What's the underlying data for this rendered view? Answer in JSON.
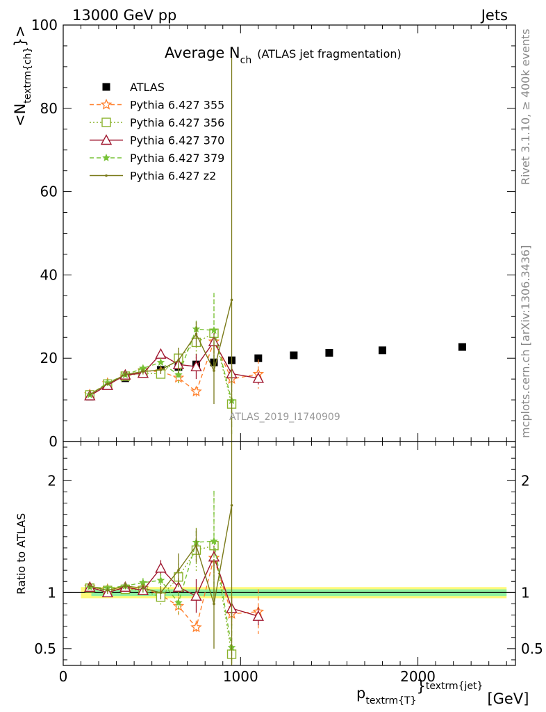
{
  "header": {
    "energy_label": "13000 GeV pp",
    "process_label": "Jets"
  },
  "side_labels": {
    "rivet": "Rivet 3.1.10, ≥ 400k events",
    "mcplots": "mcplots.cern.ch [arXiv:1306.3436]"
  },
  "colors": {
    "ATLAS": "#000000",
    "Pythia 6.427 355": "#ff7f2a",
    "Pythia 6.427 356": "#8ab22a",
    "Pythia 6.427 370": "#a01830",
    "Pythia 6.427 379": "#77c236",
    "Pythia 6.427 z2": "#7a7a1a",
    "band_yellow": "#fff97a",
    "band_green": "#8ef0a0"
  },
  "chart_data": [
    {
      "type": "line",
      "title_main": "Average N",
      "title_sub": "ch",
      "title_note": "(ATLAS jet fragmentation)",
      "ylabel": "<N",
      "ylabel_sub": "textrm{ch}",
      "ylabel_end": "}>",
      "analysis_tag": "ATLAS_2019_I1740909",
      "xlim": [
        0,
        2550
      ],
      "ylim": [
        0,
        100
      ],
      "yticks": [
        0,
        20,
        40,
        60,
        80,
        100
      ],
      "xticks": [
        0,
        1000,
        2000
      ],
      "grid": false,
      "legend_position": "top-left",
      "x": [
        150,
        250,
        350,
        450,
        550,
        650,
        750,
        850,
        950,
        1100,
        1300,
        1500,
        1800,
        2250
      ],
      "series": [
        {
          "name": "ATLAS",
          "marker": "filled-square",
          "style": "none",
          "x": [
            150,
            250,
            350,
            450,
            550,
            650,
            750,
            850,
            950,
            1100,
            1300,
            1500,
            1800,
            2250
          ],
          "values": [
            10.8,
            13.6,
            15.2,
            16.3,
            17.2,
            17.9,
            18.5,
            19.0,
            19.5,
            20.0,
            20.7,
            21.3,
            21.9,
            22.7
          ],
          "err": [
            0.3,
            0.3,
            0.3,
            0.3,
            0.3,
            0.4,
            0.4,
            0.4,
            0.4,
            0.5,
            0.5,
            0.5,
            0.6,
            0.7
          ]
        },
        {
          "name": "Pythia 6.427 355",
          "marker": "open-star",
          "style": "dashed",
          "x": [
            150,
            250,
            350,
            450,
            550,
            650,
            750,
            850,
            950,
            1100
          ],
          "values": [
            11.3,
            14.0,
            15.6,
            17.0,
            16.8,
            15.3,
            12.0,
            24.0,
            15.0,
            16.2
          ],
          "err": [
            0.3,
            0.4,
            0.5,
            0.7,
            1.0,
            1.5,
            1.2,
            3.0,
            2.5,
            3.5
          ]
        },
        {
          "name": "Pythia 6.427 356",
          "marker": "open-square",
          "style": "dotted",
          "x": [
            150,
            250,
            350,
            450,
            550,
            650,
            750,
            850,
            950
          ],
          "values": [
            11.2,
            13.8,
            15.7,
            16.5,
            16.2,
            20.0,
            23.8,
            26.0,
            9.0
          ],
          "err": [
            0.3,
            0.4,
            0.5,
            0.7,
            1.2,
            2.5,
            4.0,
            9.0,
            5.0
          ]
        },
        {
          "name": "Pythia 6.427 370",
          "marker": "open-triangle",
          "style": "solid",
          "x": [
            150,
            250,
            350,
            450,
            550,
            650,
            750,
            850,
            950,
            1100
          ],
          "values": [
            11.0,
            13.5,
            16.0,
            16.4,
            21.0,
            18.5,
            18.0,
            24.0,
            16.3,
            15.2
          ],
          "err": [
            0.3,
            0.4,
            0.5,
            0.7,
            1.2,
            1.5,
            3.0,
            2.0,
            2.0,
            1.5
          ]
        },
        {
          "name": "Pythia 6.427 379",
          "marker": "filled-star",
          "style": "dashed",
          "x": [
            150,
            250,
            350,
            450,
            550,
            650,
            750,
            850,
            950
          ],
          "values": [
            11.2,
            14.1,
            16.0,
            17.6,
            19.0,
            16.0,
            27.0,
            26.7,
            9.8
          ],
          "err": [
            0.3,
            0.4,
            0.5,
            0.7,
            1.0,
            2.0,
            2.0,
            9.0,
            8.0
          ]
        },
        {
          "name": "Pythia 6.427 z2",
          "marker": "dot",
          "style": "solid",
          "x": [
            150,
            250,
            350,
            450,
            550,
            650,
            750,
            850,
            950
          ],
          "values": [
            11.3,
            13.8,
            16.1,
            16.8,
            17.2,
            19.5,
            25.8,
            17.0,
            34.0
          ],
          "err": [
            0.3,
            0.4,
            0.5,
            0.7,
            1.0,
            3.0,
            3.0,
            8.0,
            60.0
          ]
        }
      ]
    },
    {
      "type": "line",
      "ylabel": "Ratio to ATLAS",
      "xlabel_main": "p",
      "xlabel_sub": "textrm{T}",
      "xlabel_sup": "textrm{jet}",
      "xlabel_brace": "}",
      "xlabel_unit": "[GeV]",
      "xlim": [
        0,
        2550
      ],
      "ylim": [
        0.35,
        2.35
      ],
      "yticks": [
        0.5,
        1,
        2
      ],
      "ytick_labels": [
        "0.5",
        "1",
        "2"
      ],
      "xticks": [
        0,
        1000,
        2000
      ],
      "xtick_labels": [
        "0",
        "1000",
        "2000"
      ],
      "reference_band": {
        "x": [
          100,
          2500
        ],
        "yellow": [
          0.95,
          1.05
        ],
        "green": [
          0.97,
          1.03
        ]
      },
      "series": [
        {
          "name": "Pythia 6.427 355",
          "x": [
            150,
            250,
            350,
            450,
            550,
            650,
            750,
            850,
            950,
            1100
          ],
          "values": [
            1.05,
            1.03,
            1.03,
            1.04,
            0.98,
            0.88,
            0.69,
            1.31,
            0.81,
            0.83
          ],
          "err": [
            0.03,
            0.03,
            0.03,
            0.04,
            0.06,
            0.08,
            0.06,
            0.15,
            0.12,
            0.2
          ]
        },
        {
          "name": "Pythia 6.427 356",
          "x": [
            150,
            250,
            350,
            450,
            550,
            650,
            750,
            850,
            950
          ],
          "values": [
            1.04,
            1.02,
            1.03,
            1.02,
            0.96,
            1.14,
            1.38,
            1.42,
            0.45
          ],
          "err": [
            0.03,
            0.03,
            0.03,
            0.04,
            0.07,
            0.12,
            0.2,
            0.45,
            0.3
          ]
        },
        {
          "name": "Pythia 6.427 370",
          "x": [
            150,
            250,
            350,
            450,
            550,
            650,
            750,
            850,
            950,
            1100
          ],
          "values": [
            1.05,
            1.0,
            1.05,
            1.02,
            1.22,
            1.05,
            0.97,
            1.32,
            0.86,
            0.79
          ],
          "err": [
            0.03,
            0.03,
            0.03,
            0.04,
            0.07,
            0.08,
            0.15,
            0.1,
            0.1,
            0.08
          ]
        },
        {
          "name": "Pythia 6.427 379",
          "x": [
            150,
            250,
            350,
            450,
            550,
            650,
            750,
            850,
            950
          ],
          "values": [
            1.05,
            1.04,
            1.06,
            1.09,
            1.11,
            0.91,
            1.45,
            1.46,
            0.51
          ],
          "err": [
            0.03,
            0.03,
            0.03,
            0.04,
            0.06,
            0.1,
            0.1,
            0.45,
            0.4
          ]
        },
        {
          "name": "Pythia 6.427 z2",
          "x": [
            150,
            250,
            350,
            450,
            550,
            650,
            750,
            850,
            950
          ],
          "values": [
            1.06,
            1.02,
            1.06,
            1.04,
            1.0,
            1.2,
            1.42,
            0.9,
            1.78
          ],
          "err": [
            0.03,
            0.03,
            0.03,
            0.04,
            0.06,
            0.15,
            0.15,
            0.4,
            3.0
          ]
        }
      ]
    }
  ]
}
